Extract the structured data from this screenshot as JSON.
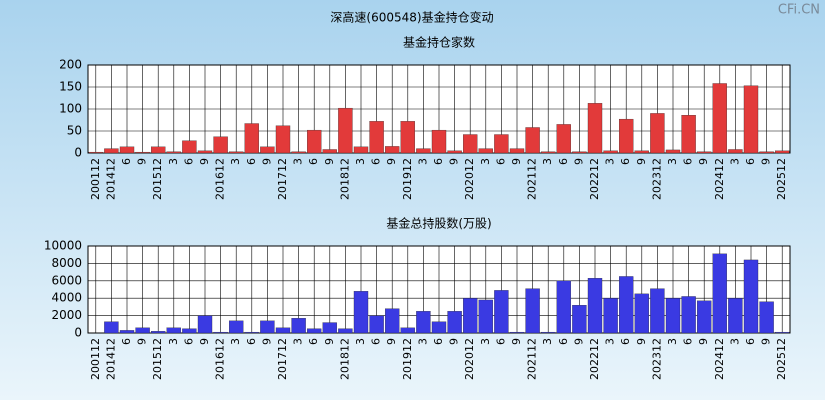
{
  "title": "深高速(600548)基金持仓变动",
  "watermark": "CFi.CN",
  "chart_data": [
    {
      "type": "bar",
      "title": "基金持仓家数",
      "color": "#e23a3a",
      "categories": [
        "200112",
        "201412",
        "6",
        "9",
        "201512",
        "3",
        "6",
        "9",
        "201612",
        "3",
        "6",
        "9",
        "201712",
        "3",
        "6",
        "9",
        "201812",
        "3",
        "6",
        "9",
        "201912",
        "3",
        "6",
        "9",
        "202012",
        "3",
        "6",
        "9",
        "202112",
        "3",
        "6",
        "9",
        "202212",
        "3",
        "6",
        "9",
        "202312",
        "3",
        "6",
        "9",
        "202412",
        "3",
        "6",
        "9",
        "202512"
      ],
      "values": [
        2,
        10,
        14,
        2,
        14,
        3,
        28,
        5,
        37,
        3,
        67,
        14,
        62,
        3,
        52,
        8,
        102,
        14,
        72,
        15,
        72,
        10,
        52,
        5,
        42,
        10,
        42,
        10,
        58,
        3,
        65,
        3,
        113,
        5,
        77,
        5,
        90,
        7,
        86,
        3,
        158,
        8,
        153,
        3,
        5
      ],
      "ylim": [
        0,
        200
      ],
      "yticks": [
        0,
        50,
        100,
        150,
        200
      ],
      "grid": true
    },
    {
      "type": "bar",
      "title": "基金总持股数(万股)",
      "color": "#3a3ae2",
      "categories": [
        "200112",
        "201412",
        "6",
        "9",
        "201512",
        "3",
        "6",
        "9",
        "201612",
        "3",
        "6",
        "9",
        "201712",
        "3",
        "6",
        "9",
        "201812",
        "3",
        "6",
        "9",
        "201912",
        "3",
        "6",
        "9",
        "202012",
        "3",
        "6",
        "9",
        "202112",
        "3",
        "6",
        "9",
        "202212",
        "3",
        "6",
        "9",
        "202312",
        "3",
        "6",
        "9",
        "202412",
        "3",
        "6",
        "9",
        "202512"
      ],
      "values": [
        0,
        1300,
        300,
        600,
        200,
        600,
        500,
        2000,
        100,
        1400,
        100,
        1400,
        600,
        1700,
        500,
        1200,
        500,
        4800,
        2000,
        2800,
        600,
        2500,
        1300,
        2500,
        4000,
        3800,
        4900,
        100,
        5100,
        100,
        6000,
        3200,
        6300,
        4000,
        6500,
        4500,
        5100,
        4000,
        4200,
        3700,
        9100,
        4000,
        8400,
        3600,
        100
      ],
      "ylim": [
        0,
        10000
      ],
      "yticks": [
        0,
        2000,
        4000,
        6000,
        8000,
        10000
      ],
      "grid": true
    }
  ]
}
